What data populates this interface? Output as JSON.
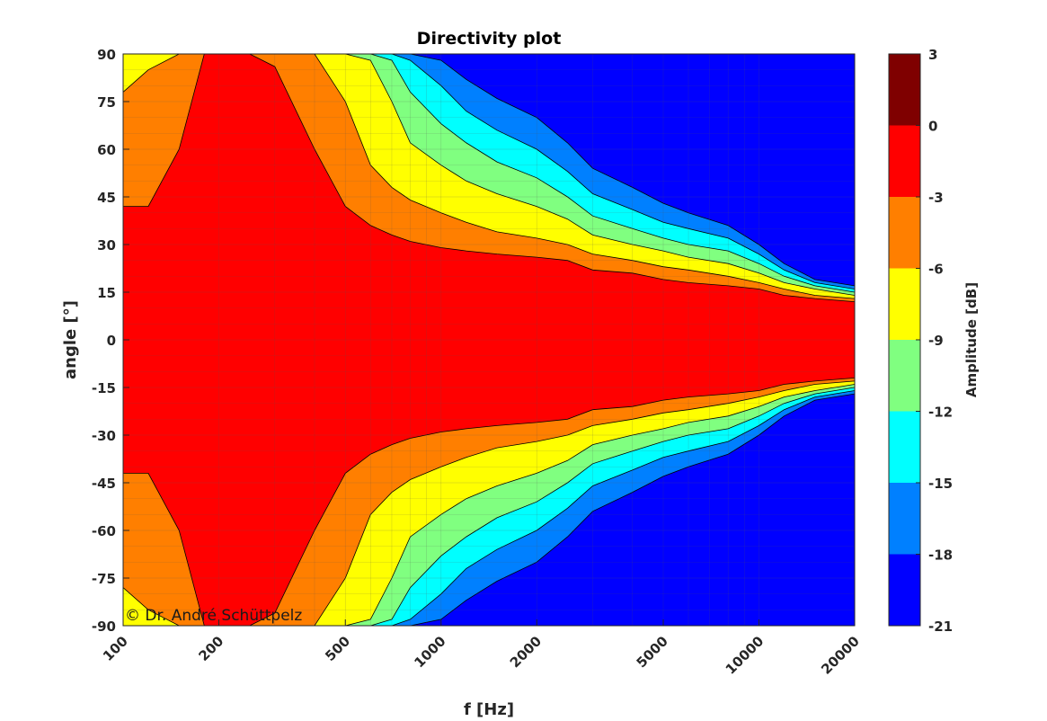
{
  "chart_data": {
    "type": "heatmap",
    "title": "Directivity plot",
    "xlabel": "f [Hz]",
    "ylabel": "angle [°]",
    "x_scale": "log",
    "xlim": [
      100,
      20000
    ],
    "ylim": [
      -90,
      90
    ],
    "x_ticks": [
      100,
      200,
      500,
      1000,
      2000,
      5000,
      10000,
      20000
    ],
    "x_tick_labels": [
      "100",
      "200",
      "500",
      "1000",
      "2000",
      "5000",
      "10000",
      "20000"
    ],
    "y_ticks": [
      90,
      75,
      60,
      45,
      30,
      15,
      0,
      -15,
      -30,
      -45,
      -60,
      -75,
      -90
    ],
    "y_tick_labels": [
      "90",
      "75",
      "60",
      "45",
      "30",
      "15",
      "0",
      "-15",
      "-30",
      "-45",
      "-60",
      "-75",
      "-90"
    ],
    "grid": true,
    "colorbar": {
      "label": "Amplitude [dB]",
      "ticks": [
        3,
        0,
        -3,
        -6,
        -9,
        -12,
        -15,
        -18,
        -21
      ],
      "tick_labels": [
        "3",
        "0",
        "-3",
        "-6",
        "-9",
        "-12",
        "-15",
        "-18",
        "-21"
      ],
      "colors": [
        "#7f0000",
        "#ff0000",
        "#ff7f00",
        "#ffff00",
        "#80ff80",
        "#00ffff",
        "#0080ff",
        "#0000ff"
      ]
    },
    "contour_levels_db": [
      -3,
      -6,
      -9,
      -12,
      -15,
      -18
    ],
    "level_boundary_angle_deg": {
      "freq_hz": [
        100,
        120,
        150,
        180,
        200,
        250,
        300,
        400,
        500,
        600,
        700,
        800,
        1000,
        1200,
        1500,
        2000,
        2500,
        3000,
        4000,
        5000,
        6000,
        8000,
        10000,
        12000,
        15000,
        20000
      ],
      "-3": [
        42,
        42,
        60,
        90,
        90,
        90,
        86,
        60,
        42,
        36,
        33,
        31,
        29,
        28,
        27,
        26,
        25,
        22,
        21,
        19,
        18,
        17,
        16,
        14,
        13,
        12
      ],
      "-6": [
        78,
        85,
        90,
        90,
        90,
        90,
        90,
        90,
        75,
        55,
        48,
        44,
        40,
        37,
        34,
        32,
        30,
        27,
        25,
        23,
        22,
        20,
        18,
        16,
        14,
        13
      ],
      "-9": [
        90,
        90,
        90,
        90,
        90,
        90,
        90,
        90,
        90,
        88,
        75,
        62,
        55,
        50,
        46,
        42,
        38,
        33,
        30,
        28,
        26,
        24,
        21,
        18,
        16,
        14
      ],
      "-12": [
        90,
        90,
        90,
        90,
        90,
        90,
        90,
        90,
        90,
        90,
        88,
        78,
        68,
        62,
        56,
        51,
        45,
        39,
        35,
        32,
        30,
        28,
        24,
        20,
        17,
        15
      ],
      "-15": [
        90,
        90,
        90,
        90,
        90,
        90,
        90,
        90,
        90,
        90,
        90,
        88,
        80,
        72,
        66,
        60,
        53,
        46,
        41,
        37,
        35,
        32,
        27,
        22,
        18,
        16
      ],
      "-18": [
        90,
        90,
        90,
        90,
        90,
        90,
        90,
        90,
        90,
        90,
        90,
        90,
        88,
        82,
        76,
        70,
        62,
        54,
        48,
        43,
        40,
        36,
        30,
        24,
        19,
        17
      ]
    }
  },
  "copyright": "© Dr. André Schüttpelz"
}
